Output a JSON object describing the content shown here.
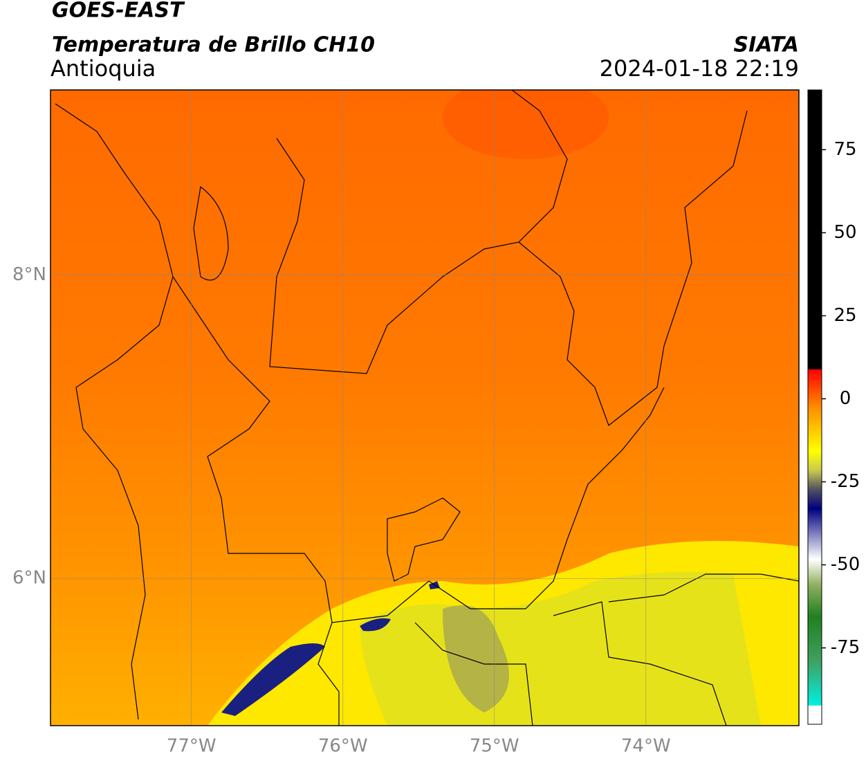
{
  "header": {
    "title": "GOES-EAST",
    "subtitle": "Temperatura de Brillo CH10",
    "region": "Antioquia",
    "source": "SIATA",
    "datetime": "2024-01-18 22:19"
  },
  "map": {
    "xlim": [
      -77.93,
      -72.99
    ],
    "ylim": [
      5.03,
      9.22
    ],
    "xticks": [
      {
        "value": -77,
        "label": "77°W"
      },
      {
        "value": -76,
        "label": "76°W"
      },
      {
        "value": -75,
        "label": "75°W"
      },
      {
        "value": -74,
        "label": "74°W"
      }
    ],
    "yticks": [
      {
        "value": 8,
        "label": "8°N"
      },
      {
        "value": 6,
        "label": "6°N"
      }
    ]
  },
  "colorbar": {
    "clim": [
      -98,
      93
    ],
    "ticks": [
      75,
      50,
      25,
      0,
      -25,
      -50,
      -75
    ]
  }
}
